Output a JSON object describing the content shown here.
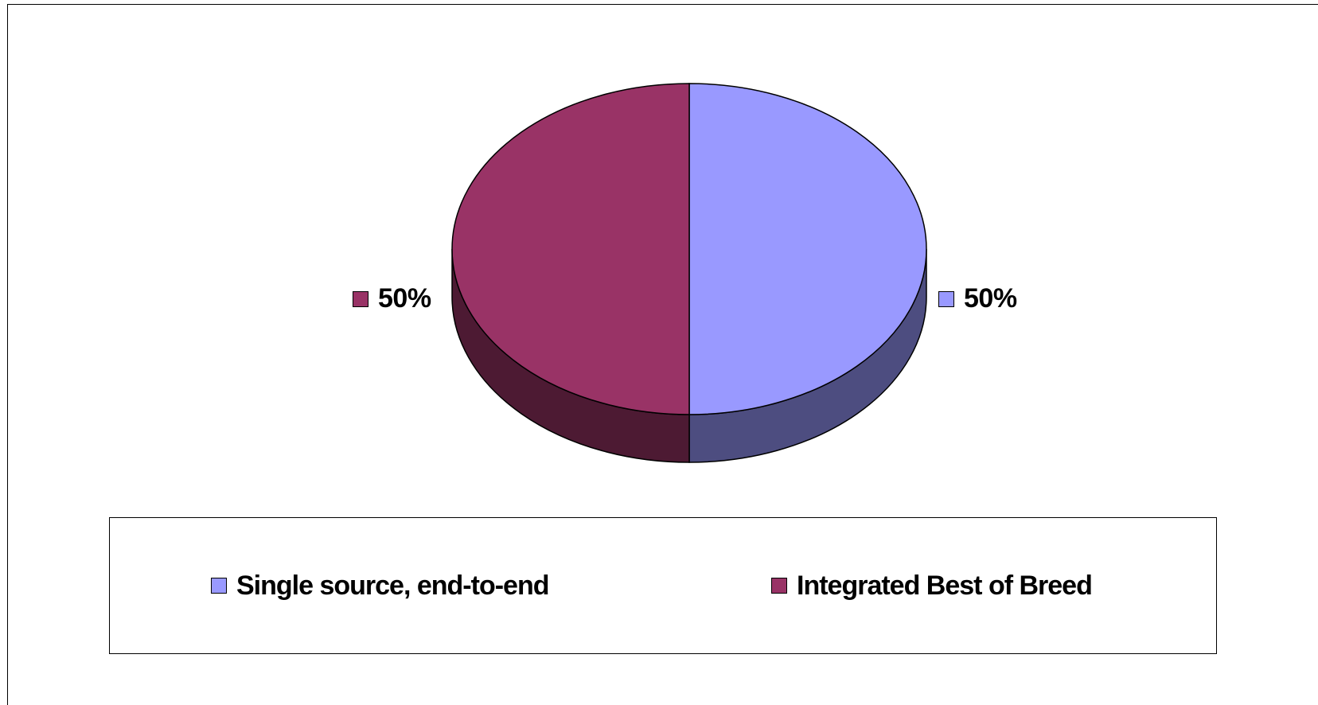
{
  "chart_data": {
    "type": "pie",
    "style": "3d",
    "title": "",
    "slices": [
      {
        "label": "Single source, end-to-end",
        "value": 50,
        "display": "50%",
        "color": "#9999FF",
        "side_color": "#4D4D80"
      },
      {
        "label": "Integrated Best of Breed",
        "value": 50,
        "display": "50%",
        "color": "#993366",
        "side_color": "#4D1A33"
      }
    ],
    "legend_position": "bottom"
  },
  "labels": {
    "left_value": "50%",
    "right_value": "50%"
  },
  "legend": {
    "items": [
      {
        "label": "Single source, end-to-end",
        "color": "#9999FF"
      },
      {
        "label": "Integrated Best of Breed",
        "color": "#993366"
      }
    ]
  }
}
